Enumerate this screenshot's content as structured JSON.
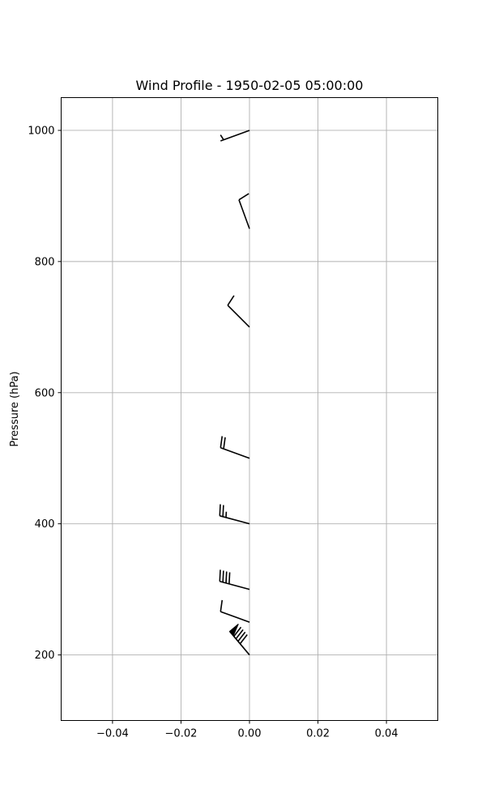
{
  "chart_data": {
    "type": "wind_barbs",
    "title": "Wind Profile - 1950-02-05 05:00:00",
    "xlabel": "",
    "ylabel": "Pressure (hPa)",
    "xlim": [
      -0.055,
      0.055
    ],
    "ylim": [
      100,
      1050
    ],
    "y_inverted": false,
    "grid": true,
    "xticks": [
      -0.04,
      -0.02,
      0.0,
      0.02,
      0.04
    ],
    "xtick_labels": [
      "−0.04",
      "−0.02",
      "0.00",
      "0.02",
      "0.04"
    ],
    "yticks": [
      200,
      400,
      600,
      800,
      1000
    ],
    "ytick_labels": [
      "200",
      "400",
      "600",
      "800",
      "1000"
    ],
    "barbs": [
      {
        "pressure": 1000,
        "speed_kt": 5,
        "direction_deg": 250
      },
      {
        "pressure": 850,
        "speed_kt": 10,
        "direction_deg": 340
      },
      {
        "pressure": 700,
        "speed_kt": 10,
        "direction_deg": 315
      },
      {
        "pressure": 500,
        "speed_kt": 20,
        "direction_deg": 290
      },
      {
        "pressure": 400,
        "speed_kt": 25,
        "direction_deg": 285
      },
      {
        "pressure": 300,
        "speed_kt": 40,
        "direction_deg": 285
      },
      {
        "pressure": 250,
        "speed_kt": 10,
        "direction_deg": 290
      },
      {
        "pressure": 200,
        "speed_kt": 90,
        "direction_deg": 320
      }
    ]
  }
}
